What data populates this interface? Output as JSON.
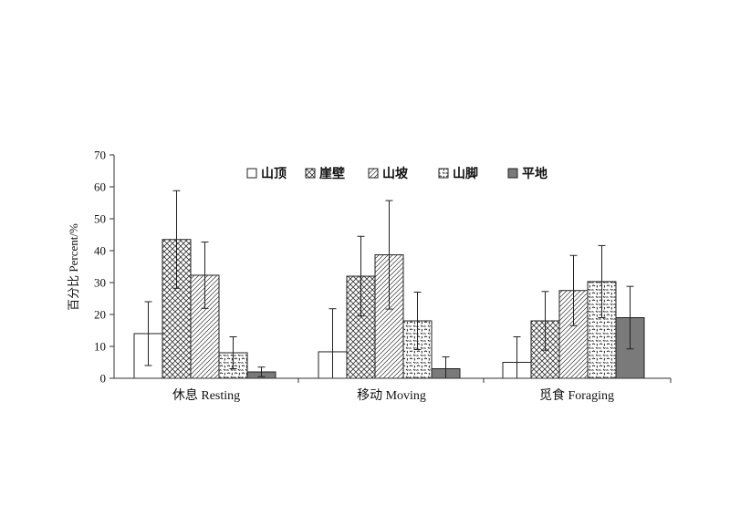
{
  "chart_data": {
    "type": "bar",
    "ylabel": "百分比 Percent/%",
    "xlabel": "",
    "ylim": [
      0,
      70
    ],
    "yticks": [
      "0",
      "10",
      "20",
      "30",
      "40",
      "50",
      "60",
      "70"
    ],
    "categories": [
      "休息 Resting",
      "移动 Moving",
      "觅食 Foraging"
    ],
    "series": [
      {
        "name": "山顶",
        "pattern": "blank",
        "values": [
          14.0,
          8.3,
          5.0
        ],
        "errors": [
          10.0,
          13.5,
          8.0
        ]
      },
      {
        "name": "崖壁",
        "pattern": "cross",
        "values": [
          43.5,
          32.0,
          18.0
        ],
        "errors": [
          15.3,
          12.5,
          9.2
        ]
      },
      {
        "name": "山坡",
        "pattern": "hatch",
        "values": [
          32.3,
          38.7,
          27.5
        ],
        "errors": [
          10.4,
          17.0,
          11.0
        ]
      },
      {
        "name": "山脚",
        "pattern": "worm",
        "values": [
          8.0,
          18.0,
          30.3
        ],
        "errors": [
          5.0,
          9.0,
          11.3
        ]
      },
      {
        "name": "平地",
        "pattern": "solid",
        "values": [
          2.0,
          3.0,
          19.0
        ],
        "errors": [
          1.5,
          3.7,
          9.8
        ]
      }
    ],
    "legend_position": "top-right",
    "grid": false,
    "colors": {
      "bar_stroke": "#222222",
      "solid_fill": "#7a7a7a",
      "axis": "#333333"
    }
  }
}
